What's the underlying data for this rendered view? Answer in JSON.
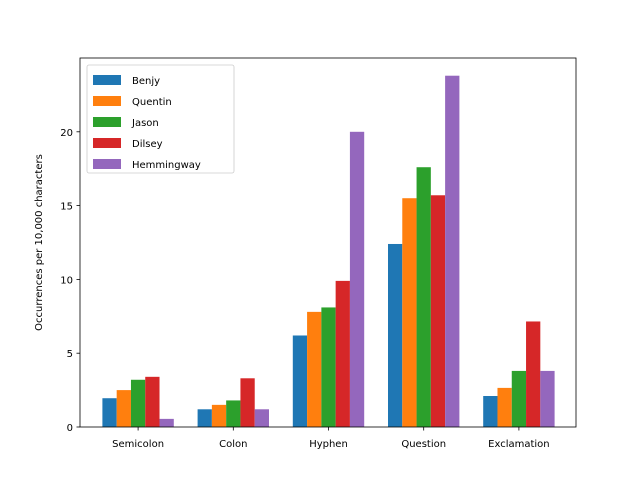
{
  "chart_data": {
    "type": "bar",
    "categories": [
      "Semicolon",
      "Colon",
      "Hyphen",
      "Question",
      "Exclamation"
    ],
    "series": [
      {
        "name": "Benjy",
        "color": "#1f77b4",
        "values": [
          1.95,
          1.2,
          6.2,
          12.4,
          2.1
        ]
      },
      {
        "name": "Quentin",
        "color": "#ff7f0e",
        "values": [
          2.5,
          1.5,
          7.8,
          15.5,
          2.65
        ]
      },
      {
        "name": "Jason",
        "color": "#2ca02c",
        "values": [
          3.2,
          1.8,
          8.1,
          17.6,
          3.8
        ]
      },
      {
        "name": "Dilsey",
        "color": "#d62728",
        "values": [
          3.4,
          3.3,
          9.9,
          15.7,
          7.15
        ]
      },
      {
        "name": "Hemmingway",
        "color": "#9467bd",
        "values": [
          0.55,
          1.2,
          20.0,
          23.8,
          3.8
        ]
      }
    ],
    "title": "",
    "xlabel": "",
    "ylabel": "Occurrences per 10,000 characters",
    "ylim": [
      0,
      25
    ],
    "yticks": [
      0,
      5,
      10,
      15,
      20
    ],
    "grid": false,
    "legend_position": "upper-left"
  }
}
